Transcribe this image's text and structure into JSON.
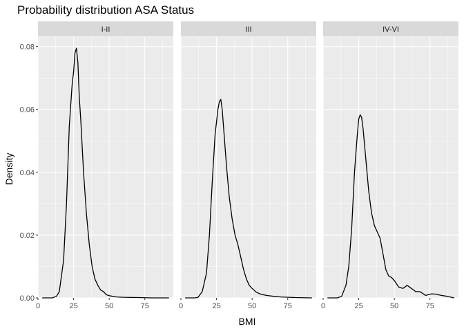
{
  "chart_data": {
    "type": "line",
    "title": "Probability distribution ASA Status",
    "xlabel": "BMI",
    "ylabel": "Density",
    "xlim": [
      0,
      95
    ],
    "ylim": [
      0,
      0.083
    ],
    "x_ticks": [
      0,
      25,
      50,
      75
    ],
    "x_tick_labels": [
      "0",
      "25",
      "50",
      "75"
    ],
    "y_ticks": [
      0,
      0.02,
      0.04,
      0.06,
      0.08
    ],
    "y_tick_labels": [
      "0.00",
      "0.02",
      "0.04",
      "0.06",
      "0.08"
    ],
    "grid": true,
    "colors": {
      "panel_bg": "#ebebeb",
      "grid_major": "#ffffff",
      "strip_bg": "#d9d9d9",
      "line": "#000000"
    },
    "facets": [
      {
        "label": "I-II",
        "x": [
          3,
          10,
          13,
          15,
          18,
          20,
          22,
          24,
          25,
          26,
          27,
          28,
          29,
          30,
          32,
          34,
          36,
          38,
          40,
          42,
          44,
          46,
          48,
          50,
          55,
          60,
          70,
          80,
          92
        ],
        "y": [
          0,
          0,
          0.0005,
          0.002,
          0.012,
          0.03,
          0.055,
          0.068,
          0.072,
          0.078,
          0.0795,
          0.075,
          0.064,
          0.057,
          0.04,
          0.027,
          0.017,
          0.01,
          0.006,
          0.004,
          0.0025,
          0.002,
          0.001,
          0.0007,
          0.0003,
          0.0002,
          0.0001,
          0,
          0
        ]
      },
      {
        "label": "III",
        "x": [
          3,
          10,
          12,
          15,
          18,
          20,
          22,
          24,
          26,
          27,
          28,
          29,
          30,
          32,
          34,
          36,
          38,
          40,
          42,
          44,
          46,
          48,
          50,
          53,
          56,
          60,
          65,
          70,
          80,
          92
        ],
        "y": [
          0,
          0,
          0.0002,
          0.002,
          0.008,
          0.02,
          0.037,
          0.052,
          0.06,
          0.0625,
          0.0632,
          0.06,
          0.054,
          0.042,
          0.032,
          0.025,
          0.02,
          0.017,
          0.013,
          0.009,
          0.006,
          0.004,
          0.003,
          0.0018,
          0.0012,
          0.0008,
          0.0005,
          0.0003,
          0.0001,
          0
        ]
      },
      {
        "label": "IV-VI",
        "x": [
          3,
          10,
          13,
          16,
          18,
          20,
          22,
          24,
          25,
          26,
          27,
          28,
          30,
          32,
          34,
          36,
          38,
          40,
          42,
          44,
          46,
          48,
          50,
          53,
          56,
          59,
          62,
          65,
          68,
          72,
          76,
          79,
          83,
          87,
          92
        ],
        "y": [
          0,
          0,
          0.0005,
          0.004,
          0.01,
          0.022,
          0.04,
          0.052,
          0.057,
          0.0583,
          0.0575,
          0.054,
          0.044,
          0.034,
          0.027,
          0.023,
          0.021,
          0.019,
          0.014,
          0.009,
          0.007,
          0.0065,
          0.0055,
          0.0035,
          0.003,
          0.004,
          0.003,
          0.002,
          0.002,
          0.0008,
          0.0013,
          0.0012,
          0.0008,
          0.0005,
          0
        ]
      }
    ]
  }
}
